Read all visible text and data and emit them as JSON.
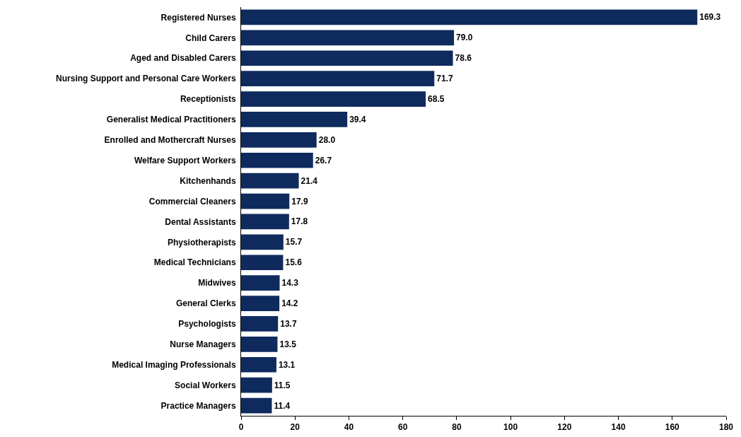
{
  "chart_data": {
    "type": "bar",
    "orientation": "horizontal",
    "categories": [
      "Registered Nurses",
      "Child Carers",
      "Aged and Disabled Carers",
      "Nursing Support and Personal Care Workers",
      "Receptionists",
      "Generalist Medical Practitioners",
      "Enrolled and Mothercraft Nurses",
      "Welfare Support Workers",
      "Kitchenhands",
      "Commercial Cleaners",
      "Dental Assistants",
      "Physiotherapists",
      "Medical Technicians",
      "Midwives",
      "General Clerks",
      "Psychologists",
      "Nurse Managers",
      "Medical Imaging Professionals",
      "Social Workers",
      "Practice Managers"
    ],
    "values": [
      169.3,
      79.0,
      78.6,
      71.7,
      68.5,
      39.4,
      28.0,
      26.7,
      21.4,
      17.9,
      17.8,
      15.7,
      15.6,
      14.3,
      14.2,
      13.7,
      13.5,
      13.1,
      11.5,
      11.4
    ],
    "value_labels": [
      "169.3",
      "79.0",
      "78.6",
      "71.7",
      "68.5",
      "39.4",
      "28.0",
      "26.7",
      "21.4",
      "17.9",
      "17.8",
      "15.7",
      "15.6",
      "14.3",
      "14.2",
      "13.7",
      "13.5",
      "13.1",
      "11.5",
      "11.4"
    ],
    "color": "#0f2b5e",
    "xlim": [
      0,
      180
    ],
    "xticks": [
      0,
      20,
      40,
      60,
      80,
      100,
      120,
      140,
      160,
      180
    ],
    "grid": false,
    "legend": false
  }
}
